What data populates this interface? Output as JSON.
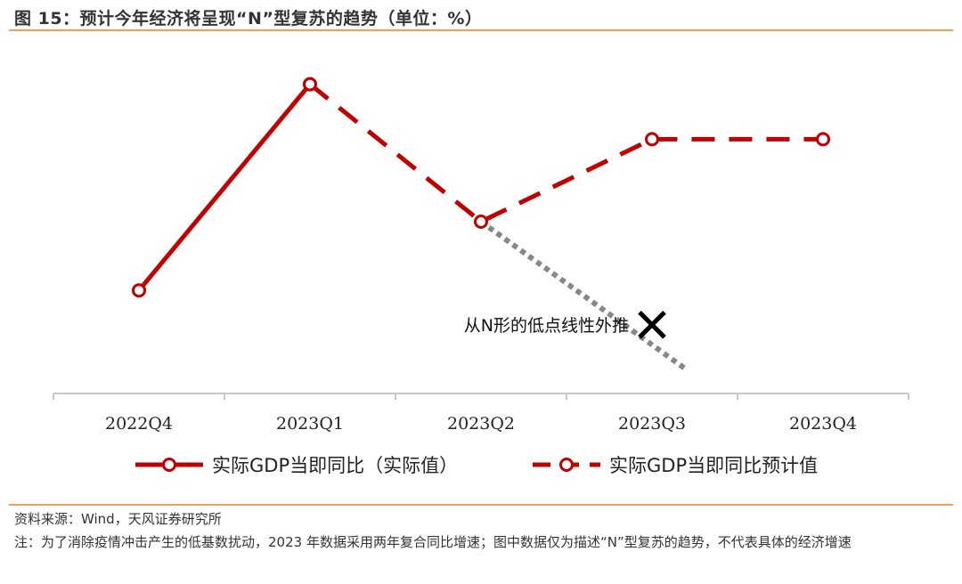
{
  "title": "图 15：预计今年经济将呈现“N”型复苏的趋势（单位：%）",
  "source": "资料来源：Wind，天风证券研究所",
  "note": "注：为了消除疫情冲击产生的低基数扰动，2023 年数据采用两年复合同比增速；图中数据仅为描述“N”型复苏的趋势，不代表具体的经济增速",
  "colors": {
    "series": "#c00000",
    "projection": "#888888",
    "rule": "#f0a050"
  },
  "chart_data": {
    "type": "line",
    "categories": [
      "2022Q4",
      "2023Q1",
      "2023Q2",
      "2023Q3",
      "2023Q4"
    ],
    "ylim": [
      0,
      100
    ],
    "yaxis_visible": false,
    "grid": false,
    "legend_position": "bottom",
    "series": [
      {
        "name": "实际GDP当即同比（实际值）",
        "style": "solid",
        "marker": "open-circle",
        "points": [
          {
            "x": "2022Q4",
            "y": 30
          },
          {
            "x": "2023Q1",
            "y": 90
          }
        ]
      },
      {
        "name": "实际GDP当即同比预计值",
        "style": "dashed",
        "marker": "open-circle",
        "points": [
          {
            "x": "2023Q1",
            "y": 90
          },
          {
            "x": "2023Q2",
            "y": 50
          },
          {
            "x": "2023Q3",
            "y": 74
          },
          {
            "x": "2023Q4",
            "y": 74
          }
        ]
      }
    ],
    "projection": {
      "style": "dotted",
      "points": [
        {
          "x": 2,
          "y": 50
        },
        {
          "x": 3.2,
          "y": 7
        }
      ],
      "marker": {
        "x": 3,
        "y": 20,
        "symbol": "x"
      },
      "label": "从N形的低点线性外推"
    }
  }
}
